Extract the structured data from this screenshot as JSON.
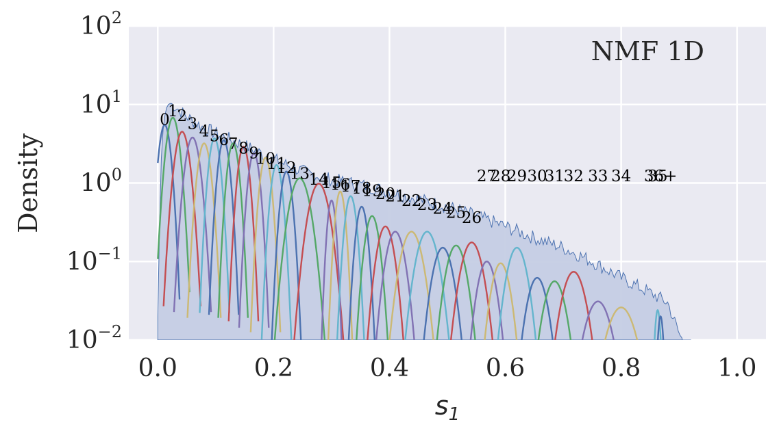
{
  "chart_data": {
    "type": "line",
    "annotation": "NMF 1D",
    "ylabel": "Density",
    "xlabel": {
      "main": "s",
      "sub": "1"
    },
    "xlim": [
      -0.05,
      1.05
    ],
    "ylim": [
      0.01,
      100
    ],
    "yscale": "log",
    "grid": true,
    "x_ticks": [
      {
        "value": 0.0,
        "label": "0.0"
      },
      {
        "value": 0.2,
        "label": "0.2"
      },
      {
        "value": 0.4,
        "label": "0.4"
      },
      {
        "value": 0.6,
        "label": "0.6"
      },
      {
        "value": 0.8,
        "label": "0.8"
      },
      {
        "value": 1.0,
        "label": "1.0"
      }
    ],
    "y_ticks": [
      {
        "value": 0.01,
        "base": "10",
        "exp": "−2"
      },
      {
        "value": 0.1,
        "base": "10",
        "exp": "−1"
      },
      {
        "value": 1,
        "base": "10",
        "exp": "0"
      },
      {
        "value": 10,
        "base": "10",
        "exp": "1"
      },
      {
        "value": 100,
        "base": "10",
        "exp": "2"
      }
    ],
    "palette": [
      "#4c72b0",
      "#55a868",
      "#c44e52",
      "#8172b3",
      "#ccb974",
      "#64b5cd"
    ],
    "histogram": {
      "color": "#4c72b0",
      "fill": "#c5cde4",
      "envelope": [
        [
          0.0,
          0.02
        ],
        [
          0.005,
          1.5
        ],
        [
          0.01,
          6
        ],
        [
          0.015,
          9
        ],
        [
          0.02,
          10.5
        ],
        [
          0.03,
          9.5
        ],
        [
          0.05,
          7
        ],
        [
          0.08,
          5
        ],
        [
          0.11,
          4
        ],
        [
          0.15,
          3.0
        ],
        [
          0.2,
          2.0
        ],
        [
          0.25,
          1.4
        ],
        [
          0.3,
          1.1
        ],
        [
          0.35,
          0.95
        ],
        [
          0.4,
          0.78
        ],
        [
          0.45,
          0.62
        ],
        [
          0.5,
          0.5
        ],
        [
          0.55,
          0.38
        ],
        [
          0.6,
          0.28
        ],
        [
          0.65,
          0.2
        ],
        [
          0.7,
          0.15
        ],
        [
          0.75,
          0.1
        ],
        [
          0.8,
          0.062
        ],
        [
          0.85,
          0.04
        ],
        [
          0.88,
          0.03
        ],
        [
          0.9,
          0.012
        ],
        [
          0.92,
          0.006
        ]
      ]
    },
    "components": [
      {
        "label": "0",
        "center": 0.012,
        "peak": 5.5,
        "width": 0.008
      },
      {
        "label": "1",
        "center": 0.026,
        "peak": 6.8,
        "width": 0.009
      },
      {
        "label": "2",
        "center": 0.042,
        "peak": 4.5,
        "width": 0.01
      },
      {
        "label": "3",
        "center": 0.06,
        "peak": 3.8,
        "width": 0.01
      },
      {
        "label": "4",
        "center": 0.08,
        "peak": 3.2,
        "width": 0.009
      },
      {
        "label": "5",
        "center": 0.098,
        "peak": 3.7,
        "width": 0.008
      },
      {
        "label": "6",
        "center": 0.114,
        "peak": 3.5,
        "width": 0.008
      },
      {
        "label": "7",
        "center": 0.13,
        "peak": 3.2,
        "width": 0.008
      },
      {
        "label": "8",
        "center": 0.148,
        "peak": 2.9,
        "width": 0.008
      },
      {
        "label": "9",
        "center": 0.166,
        "peak": 2.4,
        "width": 0.008
      },
      {
        "label": "10",
        "center": 0.186,
        "peak": 2.1,
        "width": 0.008
      },
      {
        "label": "11",
        "center": 0.205,
        "peak": 1.7,
        "width": 0.008
      },
      {
        "label": "12",
        "center": 0.222,
        "peak": 1.4,
        "width": 0.008
      },
      {
        "label": "13",
        "center": 0.245,
        "peak": 1.15,
        "width": 0.014
      },
      {
        "label": "14",
        "center": 0.278,
        "peak": 0.98,
        "width": 0.014
      },
      {
        "label": "15",
        "center": 0.3,
        "peak": 0.6,
        "width": 0.006
      },
      {
        "label": "16",
        "center": 0.315,
        "peak": 0.78,
        "width": 0.007
      },
      {
        "label": "17",
        "center": 0.333,
        "peak": 0.68,
        "width": 0.008
      },
      {
        "label": "18",
        "center": 0.352,
        "peak": 0.5,
        "width": 0.008
      },
      {
        "label": "19",
        "center": 0.37,
        "peak": 0.38,
        "width": 0.01
      },
      {
        "label": "20",
        "center": 0.393,
        "peak": 0.28,
        "width": 0.012
      },
      {
        "label": "21",
        "center": 0.41,
        "peak": 0.24,
        "width": 0.013
      },
      {
        "label": "22",
        "center": 0.438,
        "peak": 0.24,
        "width": 0.015
      },
      {
        "label": "23",
        "center": 0.465,
        "peak": 0.24,
        "width": 0.015
      },
      {
        "label": "24",
        "center": 0.492,
        "peak": 0.15,
        "width": 0.014
      },
      {
        "label": "25",
        "center": 0.515,
        "peak": 0.16,
        "width": 0.014
      },
      {
        "label": "26",
        "center": 0.542,
        "peak": 0.175,
        "width": 0.015
      },
      {
        "label": "27",
        "center": 0.568,
        "peak": 0.1,
        "width": 0.013
      },
      {
        "label": "28",
        "center": 0.592,
        "peak": 0.095,
        "width": 0.013
      },
      {
        "label": "29",
        "center": 0.62,
        "peak": 0.15,
        "width": 0.014
      },
      {
        "label": "30",
        "center": 0.655,
        "peak": 0.062,
        "width": 0.014
      },
      {
        "label": "31",
        "center": 0.685,
        "peak": 0.056,
        "width": 0.015
      },
      {
        "label": "32",
        "center": 0.718,
        "peak": 0.074,
        "width": 0.016
      },
      {
        "label": "33",
        "center": 0.76,
        "peak": 0.031,
        "width": 0.018
      },
      {
        "label": "34",
        "center": 0.8,
        "peak": 0.026,
        "width": 0.02
      },
      {
        "label": "35",
        "center": 0.863,
        "peak": 0.024,
        "width": 0.004
      },
      {
        "label": "36+",
        "center": 0.868,
        "peak": 0.02,
        "width": 0.004
      }
    ]
  }
}
